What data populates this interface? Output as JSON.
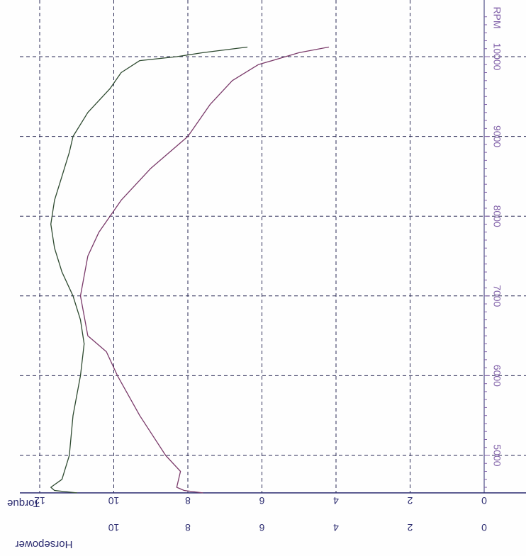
{
  "chart_data": {
    "type": "line",
    "orientation": "rotated-90",
    "x_axis": {
      "label": "RPM",
      "ticks": [
        5000,
        6000,
        7000,
        8000,
        9000,
        10000
      ],
      "tick_labels": [
        "5000",
        "6000",
        "7000",
        "8000",
        "9000",
        "10000"
      ],
      "range": [
        4530,
        10600
      ]
    },
    "y_axes": [
      {
        "label": "Torque",
        "ticks": [
          0,
          2,
          4,
          6,
          8,
          10,
          12
        ],
        "tick_labels": [
          "0",
          "2",
          "4",
          "6",
          "8",
          "10",
          "12"
        ],
        "range": [
          0,
          12.4
        ]
      },
      {
        "label": "Horsepower",
        "ticks": [
          0,
          2,
          4,
          6,
          8,
          10
        ],
        "tick_labels": [
          "0",
          "2",
          "4",
          "6",
          "8",
          "10"
        ],
        "range": [
          0,
          12.4
        ]
      }
    ],
    "grid": true,
    "series": [
      {
        "name": "Torque",
        "points": [
          [
            4530,
            11.0
          ],
          [
            4560,
            11.6
          ],
          [
            4600,
            11.7
          ],
          [
            4700,
            11.4
          ],
          [
            4850,
            11.3
          ],
          [
            5000,
            11.2
          ],
          [
            5500,
            11.1
          ],
          [
            6000,
            10.9
          ],
          [
            6400,
            10.8
          ],
          [
            6700,
            10.9
          ],
          [
            7000,
            11.1
          ],
          [
            7300,
            11.4
          ],
          [
            7600,
            11.6
          ],
          [
            7900,
            11.7
          ],
          [
            8200,
            11.6
          ],
          [
            8500,
            11.4
          ],
          [
            8800,
            11.2
          ],
          [
            9000,
            11.1
          ],
          [
            9300,
            10.7
          ],
          [
            9600,
            10.1
          ],
          [
            9800,
            9.8
          ],
          [
            9950,
            9.3
          ],
          [
            10000,
            8.3
          ],
          [
            10050,
            7.6
          ],
          [
            10120,
            6.4
          ]
        ],
        "color": "#2e4a30"
      },
      {
        "name": "Horsepower",
        "points": [
          [
            4530,
            7.6
          ],
          [
            4560,
            8.1
          ],
          [
            4600,
            8.3
          ],
          [
            4800,
            8.2
          ],
          [
            5000,
            8.6
          ],
          [
            5500,
            9.3
          ],
          [
            6000,
            9.9
          ],
          [
            6300,
            10.2
          ],
          [
            6500,
            10.7
          ],
          [
            7000,
            10.9
          ],
          [
            7500,
            10.7
          ],
          [
            7800,
            10.4
          ],
          [
            8200,
            9.8
          ],
          [
            8600,
            9.0
          ],
          [
            9000,
            8.0
          ],
          [
            9400,
            7.4
          ],
          [
            9700,
            6.8
          ],
          [
            9900,
            6.1
          ],
          [
            10050,
            5.0
          ],
          [
            10120,
            4.2
          ]
        ],
        "color": "#7a3a6a"
      }
    ]
  },
  "colors": {
    "grid_color": "#2a2a55",
    "axis_color": "#2c2c70",
    "rpm_tick_color": "#8060a8",
    "torque_color": "#2e4a30",
    "horsepower_color": "#7a3a6a"
  }
}
